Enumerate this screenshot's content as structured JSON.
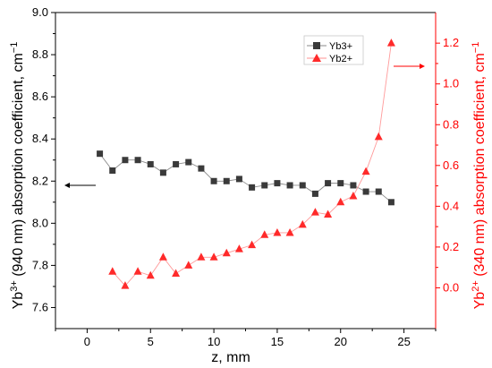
{
  "chart_data": {
    "type": "scatter",
    "xlabel": "z, mm",
    "ylabel_left": {
      "base": "Yb",
      "sup": "3+",
      "rest": " (940 nm) absorption coefficient, cm",
      "unit_sup": "−1"
    },
    "ylabel_right": {
      "base": "Yb",
      "sup": "2+",
      "rest": " (340 nm) absorption coefficient, cm",
      "unit_sup": "−1"
    },
    "xlim": [
      -2.5,
      27.5
    ],
    "ylim_left": [
      7.5,
      9.0
    ],
    "ylim_right": [
      -0.2,
      1.35
    ],
    "x_ticks": [
      0,
      5,
      10,
      15,
      20,
      25
    ],
    "y_left_ticks": [
      7.6,
      7.8,
      8.0,
      8.2,
      8.4,
      8.6,
      8.8,
      9.0
    ],
    "y_right_ticks": [
      0.0,
      0.2,
      0.4,
      0.6,
      0.8,
      1.0,
      1.2
    ],
    "x_tick_labels": [
      "0",
      "5",
      "10",
      "15",
      "20",
      "25"
    ],
    "y_left_tick_labels": [
      "7.6",
      "7.8",
      "8.0",
      "8.2",
      "8.4",
      "8.6",
      "8.8",
      "9.0"
    ],
    "y_right_tick_labels": [
      "0.0",
      "0.2",
      "0.4",
      "0.6",
      "0.8",
      "1.0",
      "1.2"
    ],
    "series": [
      {
        "name": "Yb3+",
        "axis": "left",
        "marker": "square",
        "color": "#3a3a3a",
        "x": [
          1,
          2,
          3,
          4,
          5,
          6,
          7,
          8,
          9,
          10,
          11,
          12,
          13,
          14,
          15,
          16,
          17,
          18,
          19,
          20,
          21,
          22,
          23,
          24
        ],
        "y": [
          8.33,
          8.25,
          8.3,
          8.3,
          8.28,
          8.24,
          8.28,
          8.29,
          8.26,
          8.2,
          8.2,
          8.21,
          8.17,
          8.18,
          8.19,
          8.18,
          8.18,
          8.14,
          8.19,
          8.19,
          8.18,
          8.15,
          8.15,
          8.1
        ]
      },
      {
        "name": "Yb2+",
        "axis": "right",
        "marker": "triangle",
        "color": "#ff2a2a",
        "x": [
          2,
          3,
          4,
          5,
          6,
          7,
          8,
          9,
          10,
          11,
          12,
          13,
          14,
          15,
          16,
          17,
          18,
          19,
          20,
          21,
          22,
          23,
          24
        ],
        "y": [
          0.08,
          0.01,
          0.08,
          0.06,
          0.15,
          0.07,
          0.11,
          0.15,
          0.15,
          0.17,
          0.19,
          0.21,
          0.26,
          0.27,
          0.27,
          0.31,
          0.37,
          0.36,
          0.42,
          0.45,
          0.57,
          0.74,
          1.2
        ]
      }
    ],
    "legend_position": "top-right",
    "grid": false
  },
  "colors": {
    "left_axis": "#000000",
    "right_axis": "#ff0000"
  }
}
